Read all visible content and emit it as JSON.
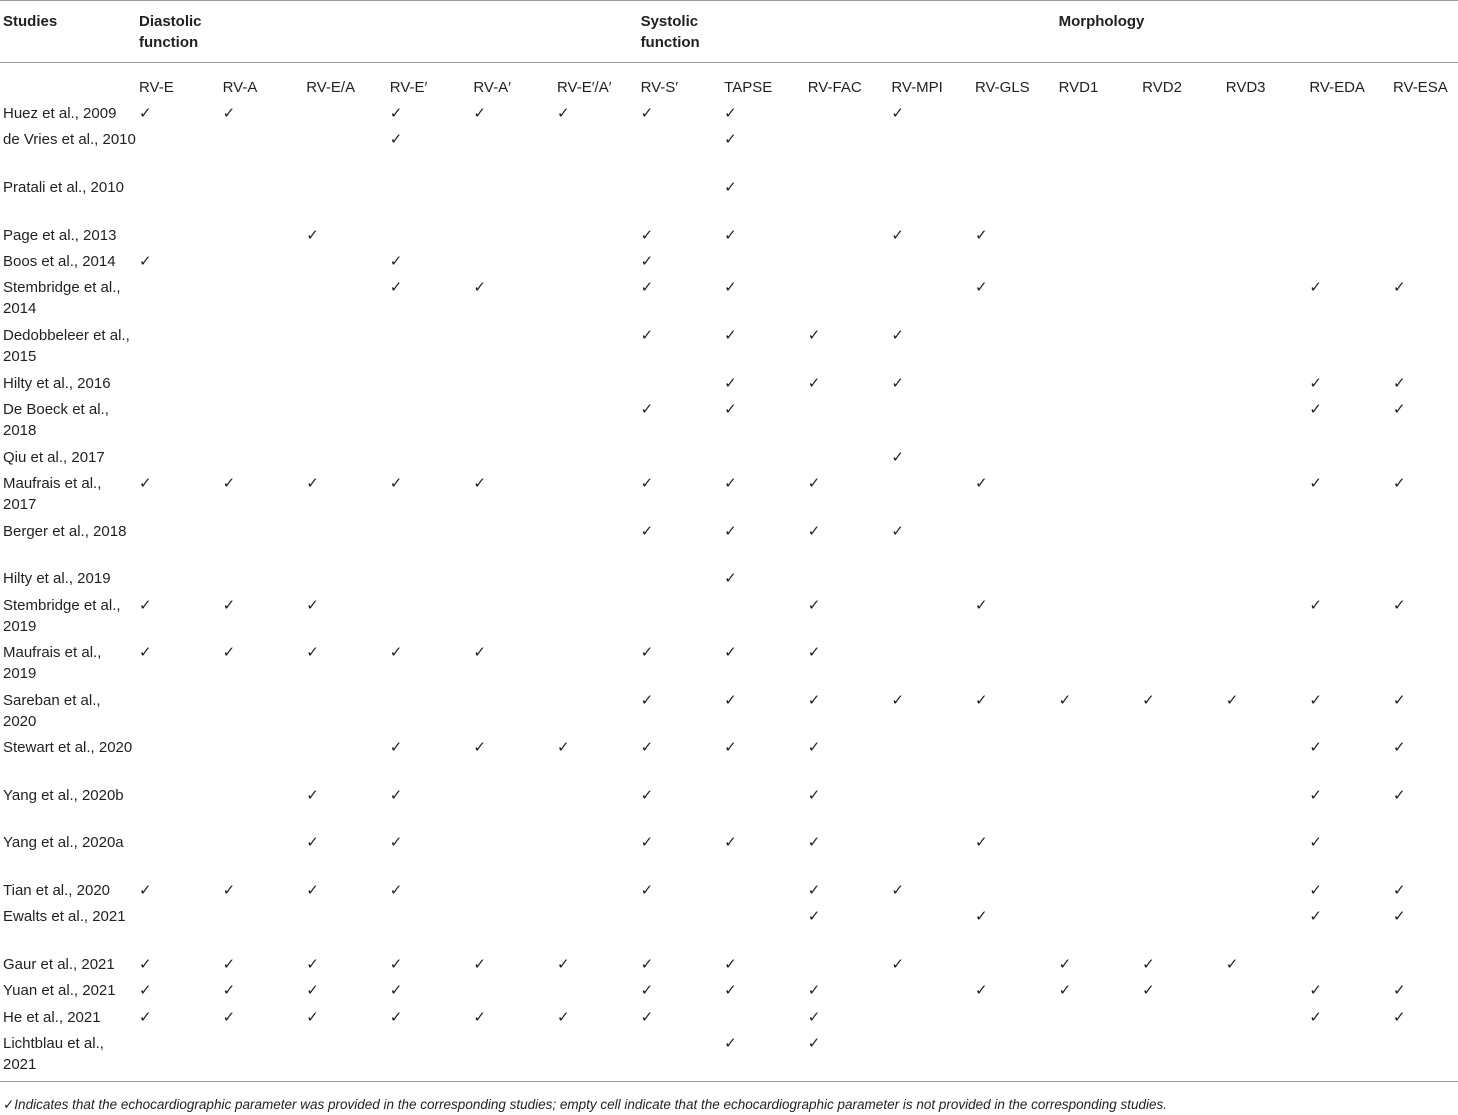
{
  "header": {
    "studies_label": "Studies",
    "groups": [
      {
        "label": "Diastolic\nfunction",
        "span": 6
      },
      {
        "label": "Systolic\nfunction",
        "span": 5
      },
      {
        "label": "Morphology",
        "span": 5
      }
    ],
    "columns": [
      "RV-E",
      "RV-A",
      "RV-E/A",
      "RV-E′",
      "RV-A′",
      "RV-E′/A′",
      "RV-S′",
      "TAPSE",
      "RV-FAC",
      "RV-MPI",
      "RV-GLS",
      "RVD1",
      "RVD2",
      "RVD3",
      "RV-EDA",
      "RV-ESA"
    ]
  },
  "check_symbol": "✓",
  "rows": [
    {
      "study": "Huez et al., 2009",
      "lines": 1,
      "marks": [
        "RV-E",
        "RV-A",
        "RV-E′",
        "RV-A′",
        "RV-E′/A′",
        "RV-S′",
        "TAPSE",
        "RV-MPI"
      ]
    },
    {
      "study": "de Vries et al., 2010",
      "lines": 2,
      "marks": [
        "RV-E′",
        "TAPSE"
      ]
    },
    {
      "study": "Pratali et al., 2010",
      "lines": 2,
      "marks": [
        "TAPSE"
      ]
    },
    {
      "study": "Page et al., 2013",
      "lines": 1,
      "marks": [
        "RV-E/A",
        "RV-S′",
        "TAPSE",
        "RV-MPI",
        "RV-GLS"
      ]
    },
    {
      "study": "Boos et al., 2014",
      "lines": 1,
      "marks": [
        "RV-E",
        "RV-E′",
        "RV-S′"
      ]
    },
    {
      "study": "Stembridge et al., 2014",
      "lines": 2,
      "marks": [
        "RV-E′",
        "RV-A′",
        "RV-S′",
        "TAPSE",
        "RV-GLS",
        "RV-EDA",
        "RV-ESA"
      ]
    },
    {
      "study": "Dedobbeleer et al., 2015",
      "lines": 2,
      "marks": [
        "RV-S′",
        "TAPSE",
        "RV-FAC",
        "RV-MPI"
      ]
    },
    {
      "study": "Hilty et al., 2016",
      "lines": 1,
      "marks": [
        "TAPSE",
        "RV-FAC",
        "RV-MPI",
        "RV-EDA",
        "RV-ESA"
      ]
    },
    {
      "study": "De Boeck et al., 2018",
      "lines": 2,
      "marks": [
        "RV-S′",
        "TAPSE",
        "RV-EDA",
        "RV-ESA"
      ]
    },
    {
      "study": "Qiu et al., 2017",
      "lines": 1,
      "marks": [
        "RV-MPI"
      ]
    },
    {
      "study": "Maufrais et al., 2017",
      "lines": 2,
      "marks": [
        "RV-E",
        "RV-A",
        "RV-E/A",
        "RV-E′",
        "RV-A′",
        "RV-S′",
        "TAPSE",
        "RV-FAC",
        "RV-GLS",
        "RV-EDA",
        "RV-ESA"
      ]
    },
    {
      "study": "Berger et al., 2018",
      "lines": 2,
      "marks": [
        "RV-S′",
        "TAPSE",
        "RV-FAC",
        "RV-MPI"
      ]
    },
    {
      "study": "Hilty et al., 2019",
      "lines": 1,
      "marks": [
        "TAPSE"
      ]
    },
    {
      "study": "Stembridge et al., 2019",
      "lines": 2,
      "marks": [
        "RV-E",
        "RV-A",
        "RV-E/A",
        "RV-FAC",
        "RV-GLS",
        "RV-EDA",
        "RV-ESA"
      ]
    },
    {
      "study": "Maufrais et al., 2019",
      "lines": 2,
      "marks": [
        "RV-E",
        "RV-A",
        "RV-E/A",
        "RV-E′",
        "RV-A′",
        "RV-S′",
        "TAPSE",
        "RV-FAC"
      ]
    },
    {
      "study": "Sareban et al., 2020",
      "lines": 2,
      "marks": [
        "RV-S′",
        "TAPSE",
        "RV-FAC",
        "RV-MPI",
        "RV-GLS",
        "RVD1",
        "RVD2",
        "RVD3",
        "RV-EDA",
        "RV-ESA"
      ]
    },
    {
      "study": "Stewart et al., 2020",
      "lines": 2,
      "marks": [
        "RV-E′",
        "RV-A′",
        "RV-E′/A′",
        "RV-S′",
        "TAPSE",
        "RV-FAC",
        "RV-EDA",
        "RV-ESA"
      ]
    },
    {
      "study": "Yang et al., 2020b",
      "lines": 2,
      "marks": [
        "RV-E/A",
        "RV-E′",
        "RV-S′",
        "RV-FAC",
        "RV-EDA",
        "RV-ESA"
      ]
    },
    {
      "study": "Yang et al., 2020a",
      "lines": 2,
      "marks": [
        "RV-E/A",
        "RV-E′",
        "RV-S′",
        "TAPSE",
        "RV-FAC",
        "RV-GLS",
        "RV-EDA"
      ]
    },
    {
      "study": "Tian et al., 2020",
      "lines": 1,
      "marks": [
        "RV-E",
        "RV-A",
        "RV-E/A",
        "RV-E′",
        "RV-S′",
        "RV-FAC",
        "RV-MPI",
        "RV-EDA",
        "RV-ESA"
      ]
    },
    {
      "study": "Ewalts et al., 2021",
      "lines": 2,
      "marks": [
        "RV-FAC",
        "RV-GLS",
        "RV-EDA",
        "RV-ESA"
      ]
    },
    {
      "study": "Gaur et al., 2021",
      "lines": 1,
      "marks": [
        "RV-E",
        "RV-A",
        "RV-E/A",
        "RV-E′",
        "RV-A′",
        "RV-E′/A′",
        "RV-S′",
        "TAPSE",
        "RV-MPI",
        "RVD1",
        "RVD2",
        "RVD3"
      ]
    },
    {
      "study": "Yuan et al., 2021",
      "lines": 1,
      "marks": [
        "RV-E",
        "RV-A",
        "RV-E/A",
        "RV-E′",
        "RV-S′",
        "TAPSE",
        "RV-FAC",
        "RV-GLS",
        "RVD1",
        "RVD2",
        "RV-EDA",
        "RV-ESA"
      ]
    },
    {
      "study": "He et al., 2021",
      "lines": 1,
      "marks": [
        "RV-E",
        "RV-A",
        "RV-E/A",
        "RV-E′",
        "RV-A′",
        "RV-E′/A′",
        "RV-S′",
        "RV-FAC",
        "RV-EDA",
        "RV-ESA"
      ]
    },
    {
      "study": "Lichtblau et al., 2021",
      "lines": 2,
      "marks": [
        "TAPSE",
        "RV-FAC"
      ]
    }
  ],
  "footnote": "✓Indicates that the echocardiographic parameter was provided in the corresponding studies; empty cell indicate that the echocardiographic parameter is not provided in the corresponding studies."
}
